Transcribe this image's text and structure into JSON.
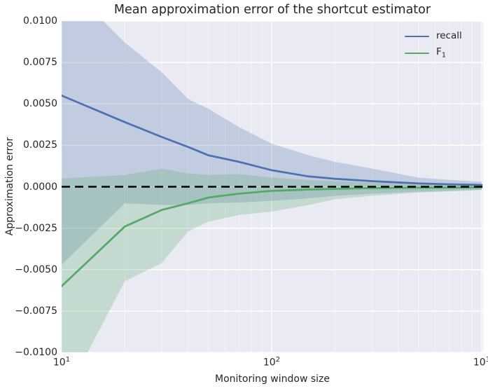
{
  "chart_data": {
    "type": "line",
    "title": "Mean approximation error of the shortcut estimator",
    "xlabel": "Monitoring window size",
    "ylabel": "Approximation error",
    "x_scale": "log",
    "xlim": [
      10,
      1000
    ],
    "ylim": [
      -0.01,
      0.01
    ],
    "grid": true,
    "legend_position": "upper right",
    "plot_background": "#eaeaf2",
    "gridline_color": "#ffffff",
    "x_ticks": [
      {
        "base": "10",
        "exp": "1",
        "value": 10
      },
      {
        "base": "10",
        "exp": "2",
        "value": 100
      },
      {
        "base": "10",
        "exp": "3",
        "value": 1000
      }
    ],
    "y_ticks": [
      {
        "label": "0.0100",
        "value": 0.01
      },
      {
        "label": "0.0075",
        "value": 0.0075
      },
      {
        "label": "0.0050",
        "value": 0.005
      },
      {
        "label": "0.0025",
        "value": 0.0025
      },
      {
        "label": "0.0000",
        "value": 0
      },
      {
        "label": "−0.0025",
        "value": -0.0025
      },
      {
        "label": "−0.0050",
        "value": -0.005
      },
      {
        "label": "−0.0075",
        "value": -0.0075
      },
      {
        "label": "−0.0100",
        "value": -0.01
      }
    ],
    "zero_line": {
      "value": 0,
      "color": "#000000",
      "style": "dashed"
    },
    "x": [
      10,
      20,
      30,
      40,
      50,
      70,
      100,
      150,
      200,
      300,
      500,
      700,
      1000
    ],
    "series": [
      {
        "name": "recall",
        "legend_label": "recall",
        "legend_sub": "",
        "color": "#4c72b0",
        "band_opacity": 0.25,
        "mean": [
          0.0055,
          0.0039,
          0.003,
          0.0024,
          0.0019,
          0.0015,
          0.001,
          0.00062,
          0.00048,
          0.00034,
          0.0002,
          0.00015,
          0.00011
        ],
        "band_upper": [
          0.0125,
          0.0087,
          0.0069,
          0.0053,
          0.0047,
          0.0036,
          0.0026,
          0.0019,
          0.0015,
          0.0011,
          0.00055,
          0.00042,
          0.0003
        ],
        "band_lower": [
          -0.0047,
          -0.001,
          -0.0011,
          -0.0011,
          -0.001,
          -0.00095,
          -0.00085,
          -0.0007,
          -0.00055,
          -0.00042,
          -0.0003,
          -0.00025,
          -0.00018
        ]
      },
      {
        "name": "F1",
        "legend_label": "F",
        "legend_sub": "1",
        "color": "#55a868",
        "band_opacity": 0.25,
        "mean": [
          -0.006,
          -0.0024,
          -0.0014,
          -0.001,
          -0.00065,
          -0.00042,
          -0.00025,
          -0.00017,
          -0.00013,
          -8e-05,
          -6e-05,
          -5e-05,
          -4e-05
        ],
        "band_upper": [
          0.0005,
          0.0007,
          0.0011,
          0.0008,
          0.00072,
          0.00076,
          0.00055,
          0.0004,
          0.00034,
          0.00025,
          0.0002,
          0.00015,
          0.0001
        ],
        "band_lower": [
          -0.013,
          -0.0057,
          -0.0046,
          -0.0027,
          -0.0021,
          -0.0017,
          -0.0015,
          -0.0011,
          -0.00075,
          -0.00055,
          -0.00035,
          -0.00028,
          -0.0002
        ]
      }
    ]
  }
}
